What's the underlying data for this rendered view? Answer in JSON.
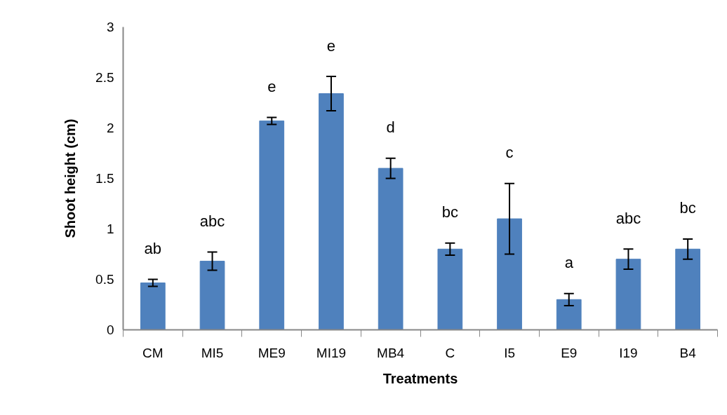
{
  "chart_data": {
    "type": "bar",
    "xlabel": "Treatments",
    "ylabel": "Shoot height (cm)",
    "categories": [
      "CM",
      "MI5",
      "ME9",
      "MI19",
      "MB4",
      "C",
      "I5",
      "E9",
      "I19",
      "B4"
    ],
    "values": [
      0.465,
      0.68,
      2.07,
      2.34,
      1.6,
      0.8,
      1.1,
      0.3,
      0.7,
      0.8
    ],
    "errors": [
      0.035,
      0.09,
      0.035,
      0.17,
      0.1,
      0.06,
      0.35,
      0.06,
      0.1,
      0.1
    ],
    "color": "#4f81bd",
    "ylim": [
      0,
      3
    ],
    "yticks": [
      0,
      0.5,
      1,
      1.5,
      2,
      2.5,
      3
    ],
    "grid": false,
    "legend": false,
    "annotations": [
      "ab",
      "abc",
      "e",
      "e",
      "d",
      "bc",
      "c",
      "a",
      "abc",
      "bc"
    ]
  }
}
